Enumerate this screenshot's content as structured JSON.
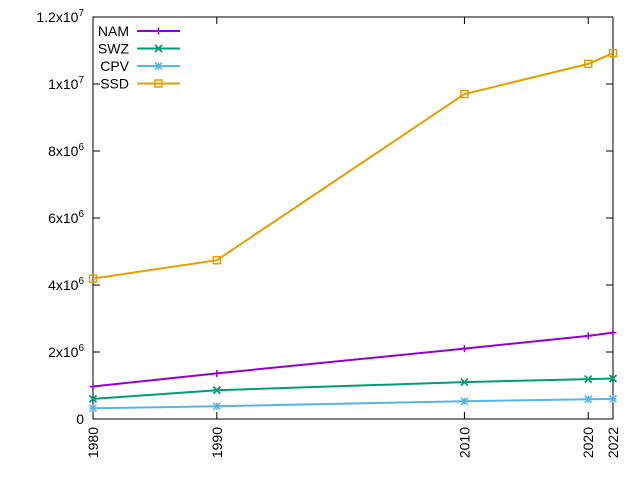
{
  "chart_data": {
    "type": "line",
    "x": [
      1980,
      1990,
      2010,
      2020,
      2022
    ],
    "x_ticks": [
      "1980",
      "1990",
      "2010",
      "2020",
      "2022"
    ],
    "xlim": [
      1980,
      2022
    ],
    "ylim": [
      0,
      12000000
    ],
    "y_ticks": [
      {
        "value": 0,
        "mantissa": "0",
        "exponent": ""
      },
      {
        "value": 2000000,
        "mantissa": "2x10",
        "exponent": "6"
      },
      {
        "value": 4000000,
        "mantissa": "4x10",
        "exponent": "6"
      },
      {
        "value": 6000000,
        "mantissa": "6x10",
        "exponent": "6"
      },
      {
        "value": 8000000,
        "mantissa": "8x10",
        "exponent": "6"
      },
      {
        "value": 10000000,
        "mantissa": "1x10",
        "exponent": "7"
      },
      {
        "value": 12000000,
        "mantissa": "1.2x10",
        "exponent": "7"
      }
    ],
    "grid": false,
    "legend_position": "top-left",
    "series": [
      {
        "name": "NAM",
        "color": "#9400d3",
        "marker": "plus",
        "values": [
          970000,
          1360000,
          2100000,
          2480000,
          2580000
        ]
      },
      {
        "name": "SWZ",
        "color": "#009e73",
        "marker": "cross",
        "values": [
          600000,
          860000,
          1100000,
          1190000,
          1210000
        ]
      },
      {
        "name": "CPV",
        "color": "#56b4e9",
        "marker": "star",
        "values": [
          320000,
          380000,
          530000,
          590000,
          600000
        ]
      },
      {
        "name": "SSD",
        "color": "#e69f00",
        "marker": "open-square",
        "values": [
          4190000,
          4740000,
          9700000,
          10600000,
          10920000
        ]
      }
    ]
  }
}
